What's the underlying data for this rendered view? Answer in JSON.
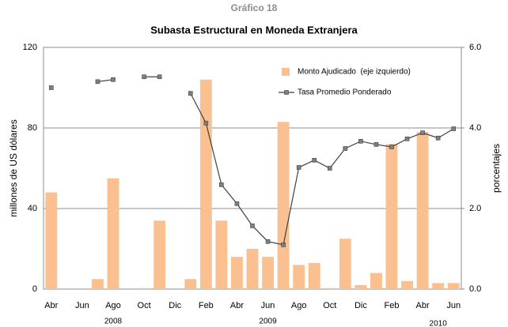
{
  "chart_data": {
    "type": "bar_line",
    "title": "Gráfico 18",
    "subtitle": "Subasta Estructural en Moneda Extranjera",
    "y_label": "millones de US dólares",
    "y2_label": "porcentajes",
    "categories": [
      "Abr",
      null,
      "Jun",
      null,
      "Ago",
      null,
      "Oct",
      null,
      "Dic",
      null,
      "Feb",
      null,
      "Abr",
      null,
      "Jun",
      null,
      "Ago",
      null,
      "Oct",
      null,
      "Dic",
      null,
      "Feb",
      null,
      "Abr",
      null,
      "Jun"
    ],
    "year_labels": [
      "2008",
      "2009",
      "2010"
    ],
    "series": [
      {
        "name": "Monto Ajudicado  (eje izquierdo)",
        "color": "#fac090",
        "type": "bar",
        "values": [
          48,
          0,
          0,
          5,
          55,
          0,
          0.5,
          34,
          0,
          5,
          104,
          34,
          16,
          20,
          16,
          83,
          12,
          13,
          0.5,
          25,
          2,
          8,
          72,
          4,
          78,
          3,
          3
        ]
      },
      {
        "name": "Tasa Promedio Ponderado",
        "color": "#404040",
        "type": "line",
        "axis": "y2",
        "values": [
          5.0,
          null,
          null,
          5.15,
          5.2,
          null,
          5.27,
          5.27,
          null,
          4.86,
          4.12,
          2.59,
          2.12,
          1.57,
          1.18,
          1.1,
          3.02,
          3.2,
          3.0,
          3.49,
          3.67,
          3.59,
          3.53,
          3.73,
          3.88,
          3.75,
          3.98
        ]
      }
    ],
    "ylim": [
      0,
      120
    ],
    "yticks": [
      0,
      40,
      80,
      120
    ],
    "y2lim": [
      0,
      6
    ],
    "y2ticks": [
      {
        "value": 0,
        "label": "0.0"
      },
      {
        "value": 2,
        "label": "2.0"
      },
      {
        "value": 4,
        "label": "4.0"
      },
      {
        "value": 6,
        "label": "6.0"
      }
    ],
    "grid": true
  }
}
